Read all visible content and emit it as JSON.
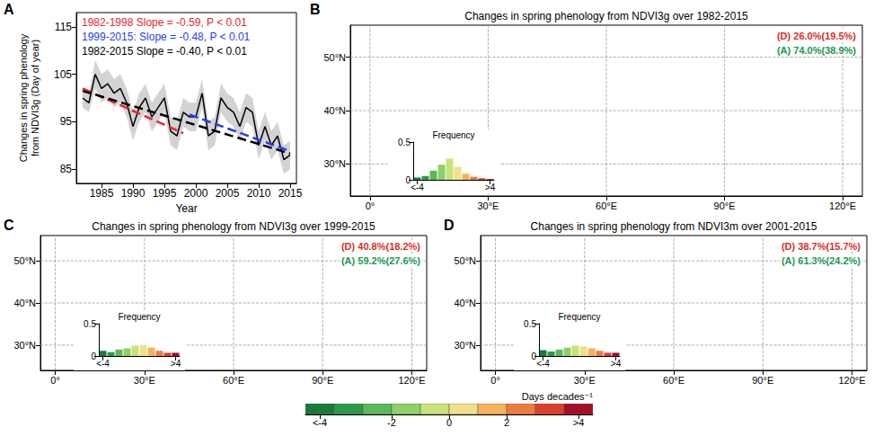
{
  "chart_data": [
    {
      "panel": "A",
      "type": "line",
      "x_label": "Year",
      "y_label": "Changes in spring phenology from NDVI3g (Day of year)",
      "xlim": [
        1981,
        2016
      ],
      "xticks": [
        1985,
        1990,
        1995,
        2000,
        2005,
        2010,
        2015
      ],
      "ylim": [
        82,
        118
      ],
      "yticks": [
        85,
        95,
        105,
        115
      ],
      "grid": false,
      "legend": "upper left",
      "x": [
        1982,
        1983,
        1984,
        1985,
        1986,
        1987,
        1988,
        1989,
        1990,
        1991,
        1992,
        1993,
        1994,
        1995,
        1996,
        1997,
        1998,
        1999,
        2000,
        2001,
        2002,
        2003,
        2004,
        2005,
        2006,
        2007,
        2008,
        2009,
        2010,
        2011,
        2012,
        2013,
        2014,
        2015
      ],
      "series": [
        {
          "type": "band",
          "color": "#d3d3d3",
          "lower": [
            98,
            97,
            102,
            99,
            100,
            98,
            99,
            96,
            91,
            95,
            97,
            93,
            95,
            97,
            90,
            89,
            94,
            93,
            93,
            98,
            89,
            90,
            97,
            95,
            94,
            91,
            95,
            94,
            87,
            91,
            87,
            89,
            84,
            85
          ],
          "upper": [
            102,
            101,
            108,
            105,
            106,
            104,
            105,
            102,
            97,
            101,
            103,
            99,
            101,
            103,
            96,
            95,
            100,
            99,
            99,
            104,
            95,
            96,
            103,
            101,
            100,
            97,
            101,
            100,
            93,
            97,
            93,
            95,
            90,
            91
          ]
        },
        {
          "type": "line",
          "color": "#000000",
          "line_style": "solid",
          "values": [
            100,
            99,
            105,
            102,
            103,
            101,
            102,
            99,
            94,
            98,
            100,
            96,
            98,
            100,
            93,
            92,
            97,
            96,
            96,
            101,
            92,
            93,
            100,
            98,
            97,
            94,
            98,
            97,
            90,
            94,
            90,
            92,
            87,
            88
          ]
        },
        {
          "name": "1982-1998 Slope = -0.59, P < 0.01",
          "type": "line",
          "color": "#e8262b",
          "line_style": "dashed",
          "x": [
            1982,
            1998
          ],
          "values": [
            102,
            92.6
          ]
        },
        {
          "name": "1999-2015: Slope = -0.48, P < 0.01",
          "type": "line",
          "color": "#1f3ff0",
          "line_style": "dashed",
          "x": [
            1999,
            2015
          ],
          "values": [
            96.5,
            88.8
          ]
        },
        {
          "name": "1982-2015 Slope = -0.40, P < 0.01",
          "type": "line",
          "color": "#000000",
          "line_style": "dashed",
          "x": [
            1982,
            2015
          ],
          "values": [
            101.5,
            88.3
          ]
        }
      ]
    },
    {
      "panel": "B",
      "type": "map",
      "title": "Changes in spring phenology from NDVI3g over 1982-2015",
      "xlim": [
        -5,
        125
      ],
      "xticks": [
        {
          "value": 0,
          "label": "0°"
        },
        {
          "value": 30,
          "label": "30°E"
        },
        {
          "value": 60,
          "label": "60°E"
        },
        {
          "value": 90,
          "label": "90°E"
        },
        {
          "value": 120,
          "label": "120°E"
        }
      ],
      "ylim": [
        24,
        56
      ],
      "yticks": [
        {
          "value": 30,
          "label": "30°N"
        },
        {
          "value": 40,
          "label": "40°N"
        },
        {
          "value": 50,
          "label": "50°N"
        }
      ],
      "grid": true,
      "annotations": [
        {
          "text": "(D) 26.0%(19.5%)",
          "color": "#d7301f"
        },
        {
          "text": "(A) 74.0%(38.9%)",
          "color": "#1a9850"
        }
      ],
      "inset": {
        "type": "bar",
        "title": "Frequency",
        "bins": [
          -5,
          -4,
          -3,
          -2,
          -1,
          0,
          1,
          2,
          3,
          4,
          5
        ],
        "values": [
          0.03,
          0.05,
          0.12,
          0.2,
          0.28,
          0.17,
          0.08,
          0.04,
          0.02,
          0.01
        ],
        "colors": [
          "#1a7a3a",
          "#2d9a4a",
          "#5cb85c",
          "#8fcf6a",
          "#c7e37a",
          "#f1e08a",
          "#f5b25a",
          "#ee7b3e",
          "#d9412b",
          "#a50f26"
        ],
        "ylim": [
          0,
          0.5
        ],
        "yticks": [
          0,
          0.5
        ],
        "xticks": [
          {
            "value": -4.5,
            "label": "<-4"
          },
          {
            "value": 4.5,
            "label": ">4"
          }
        ]
      }
    },
    {
      "panel": "C",
      "type": "map",
      "title": "Changes in spring phenology from NDVI3g over 1999-2015",
      "xlim": [
        -5,
        125
      ],
      "xticks": [
        {
          "value": 0,
          "label": "0°"
        },
        {
          "value": 30,
          "label": "30°E"
        },
        {
          "value": 60,
          "label": "60°E"
        },
        {
          "value": 90,
          "label": "90°E"
        },
        {
          "value": 120,
          "label": "120°E"
        }
      ],
      "ylim": [
        24,
        56
      ],
      "yticks": [
        {
          "value": 30,
          "label": "30°N"
        },
        {
          "value": 40,
          "label": "40°N"
        },
        {
          "value": 50,
          "label": "50°N"
        }
      ],
      "grid": true,
      "annotations": [
        {
          "text": "(D) 40.8%(18.2%)",
          "color": "#d7301f"
        },
        {
          "text": "(A) 59.2%(27.6%)",
          "color": "#1a9850"
        }
      ],
      "inset": {
        "type": "bar",
        "title": "Frequency",
        "bins": [
          -5,
          -4,
          -3,
          -2,
          -1,
          0,
          1,
          2,
          3,
          4,
          5
        ],
        "values": [
          0.08,
          0.06,
          0.1,
          0.12,
          0.16,
          0.17,
          0.13,
          0.08,
          0.05,
          0.05
        ],
        "colors": [
          "#1a7a3a",
          "#2d9a4a",
          "#5cb85c",
          "#8fcf6a",
          "#c7e37a",
          "#f1e08a",
          "#f5b25a",
          "#ee7b3e",
          "#d9412b",
          "#a50f26"
        ],
        "ylim": [
          0,
          0.5
        ],
        "yticks": [
          0,
          0.5
        ],
        "xticks": [
          {
            "value": -4.5,
            "label": "<-4"
          },
          {
            "value": 4.5,
            "label": ">4"
          }
        ]
      }
    },
    {
      "panel": "D",
      "type": "map",
      "title": "Changes in spring phenology from NDVI3m over 2001-2015",
      "xlim": [
        -5,
        125
      ],
      "xticks": [
        {
          "value": 0,
          "label": "0°"
        },
        {
          "value": 30,
          "label": "30°E"
        },
        {
          "value": 60,
          "label": "60°E"
        },
        {
          "value": 90,
          "label": "90°E"
        },
        {
          "value": 120,
          "label": "120°E"
        }
      ],
      "ylim": [
        24,
        56
      ],
      "yticks": [
        {
          "value": 30,
          "label": "30°N"
        },
        {
          "value": 40,
          "label": "40°N"
        },
        {
          "value": 50,
          "label": "50°N"
        }
      ],
      "grid": true,
      "annotations": [
        {
          "text": "(D) 38.7%(15.7%)",
          "color": "#d7301f"
        },
        {
          "text": "(A) 61.3%(24.2%)",
          "color": "#1a9850"
        }
      ],
      "inset": {
        "type": "bar",
        "title": "Frequency",
        "bins": [
          -5,
          -4,
          -3,
          -2,
          -1,
          0,
          1,
          2,
          3,
          4,
          5
        ],
        "values": [
          0.09,
          0.07,
          0.1,
          0.13,
          0.16,
          0.15,
          0.12,
          0.08,
          0.05,
          0.05
        ],
        "colors": [
          "#1a7a3a",
          "#2d9a4a",
          "#5cb85c",
          "#8fcf6a",
          "#c7e37a",
          "#f1e08a",
          "#f5b25a",
          "#ee7b3e",
          "#d9412b",
          "#a50f26"
        ],
        "ylim": [
          0,
          0.5
        ],
        "yticks": [
          0,
          0.5
        ],
        "xticks": [
          {
            "value": -4.5,
            "label": "<-4"
          },
          {
            "value": 4.5,
            "label": ">4"
          }
        ]
      }
    },
    {
      "type": "colorbar",
      "title": "Days decades⁻¹",
      "bins": [
        -5,
        -4,
        -3,
        -2,
        -1,
        0,
        1,
        2,
        3,
        4,
        5
      ],
      "colors": [
        "#1a7a3a",
        "#2d9a4a",
        "#5cb85c",
        "#8fcf6a",
        "#c7e37a",
        "#f1e08a",
        "#f5b25a",
        "#ee7b3e",
        "#d9412b",
        "#a50f26"
      ],
      "xlim": [
        -5,
        5
      ],
      "xticks": [
        {
          "value": -4.5,
          "label": "<-4"
        },
        -2,
        0,
        2,
        {
          "value": 4.5,
          "label": ">4"
        }
      ]
    }
  ]
}
